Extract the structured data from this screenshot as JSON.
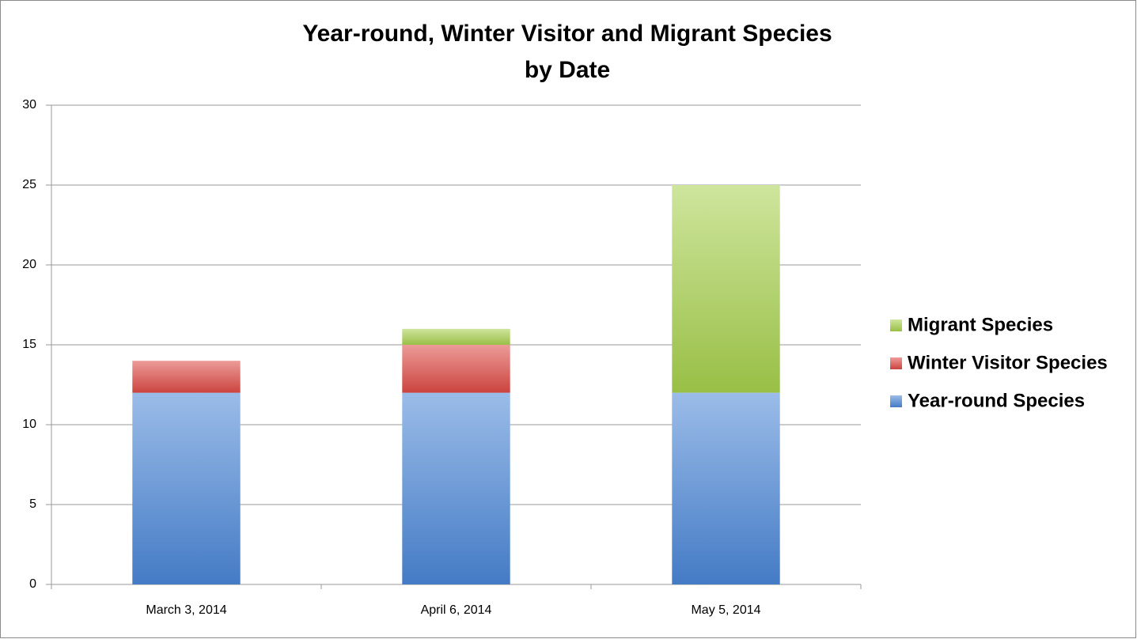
{
  "chart_data": {
    "type": "stacked-bar",
    "title": [
      "Year-round, Winter Visitor and Migrant Species",
      "by Date"
    ],
    "categories": [
      "March 3, 2014",
      "April 6, 2014",
      "May 5, 2014"
    ],
    "series": [
      {
        "name": "Year-round Species",
        "color": "#4a86d6",
        "values": [
          12,
          12,
          12
        ]
      },
      {
        "name": "Winter Visitor Species",
        "color": "#dd4a44",
        "values": [
          2,
          3,
          0
        ]
      },
      {
        "name": "Migrant Species",
        "color": "#a6d04c",
        "values": [
          0,
          1,
          13
        ]
      }
    ],
    "ylim": [
      0,
      30
    ],
    "yticks": [
      0,
      5,
      10,
      15,
      20,
      25,
      30
    ],
    "grid": true,
    "legend": "right"
  }
}
